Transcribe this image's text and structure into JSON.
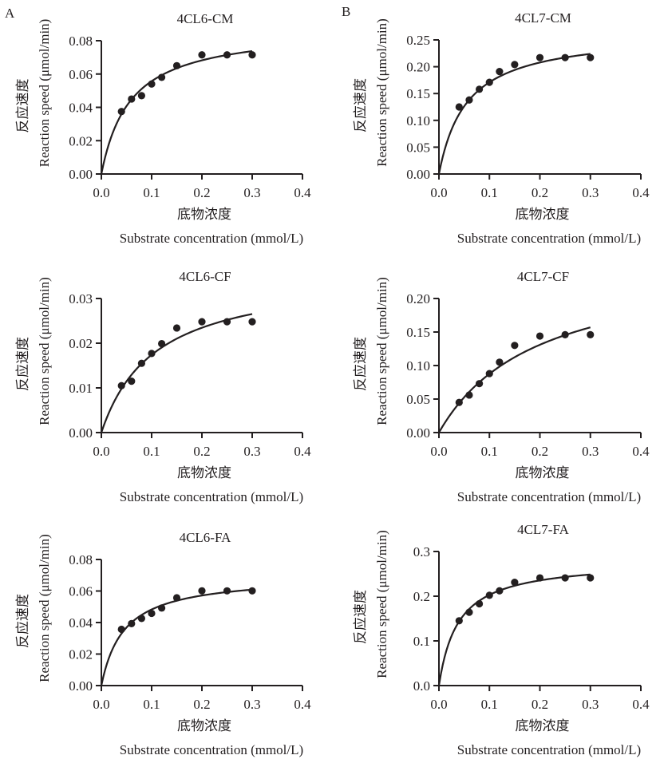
{
  "figure": {
    "panel_labels": [
      "A",
      "B"
    ],
    "colors": {
      "ink": "#231f20",
      "background": "#ffffff"
    }
  },
  "chart_data": [
    {
      "type": "scatter",
      "title": "4CL6-CM",
      "xlabel_cn": "底物浓度",
      "xlabel": "Substrate concentration (mmol/L)",
      "ylabel_cn": "反应速度",
      "ylabel": "Reaction speed (μmol/min)",
      "xlim": [
        0,
        0.4
      ],
      "ylim": [
        0,
        0.08
      ],
      "xticks": [
        "0.0",
        "0.1",
        "0.2",
        "0.3",
        "0.4"
      ],
      "yticks": [
        "0.00",
        "0.02",
        "0.04",
        "0.06",
        "0.08"
      ],
      "x": [
        0.04,
        0.06,
        0.08,
        0.1,
        0.12,
        0.15,
        0.2,
        0.25,
        0.3
      ],
      "y": [
        0.0375,
        0.045,
        0.047,
        0.054,
        0.058,
        0.065,
        0.0715,
        0.0715,
        0.0715
      ],
      "fit": {
        "model": "Michaelis-Menten",
        "Vmax": 0.088,
        "Km": 0.058,
        "x_range": [
          0,
          0.3
        ]
      },
      "grid": false,
      "legend": "none"
    },
    {
      "type": "scatter",
      "title": "4CL7-CM",
      "xlabel_cn": "底物浓度",
      "xlabel": "Substrate concentration (mmol/L)",
      "ylabel_cn": "反应速度",
      "ylabel": "Reaction speed (μmol/min)",
      "xlim": [
        0,
        0.4
      ],
      "ylim": [
        0,
        0.25
      ],
      "xticks": [
        "0.0",
        "0.1",
        "0.2",
        "0.3",
        "0.4"
      ],
      "yticks": [
        "0.00",
        "0.05",
        "0.10",
        "0.15",
        "0.20",
        "0.25"
      ],
      "x": [
        0.04,
        0.06,
        0.08,
        0.1,
        0.12,
        0.15,
        0.2,
        0.25,
        0.3
      ],
      "y": [
        0.125,
        0.138,
        0.158,
        0.171,
        0.191,
        0.204,
        0.217,
        0.217,
        0.217
      ],
      "fit": {
        "model": "Michaelis-Menten",
        "Vmax": 0.265,
        "Km": 0.055,
        "x_range": [
          0,
          0.3
        ]
      },
      "grid": false,
      "legend": "none"
    },
    {
      "type": "scatter",
      "title": "4CL6-CF",
      "xlabel_cn": "底物浓度",
      "xlabel": "Substrate concentration (mmol/L)",
      "ylabel_cn": "反应速度",
      "ylabel": "Reaction speed (μmol/min)",
      "xlim": [
        0,
        0.4
      ],
      "ylim": [
        0,
        0.03
      ],
      "xticks": [
        "0.0",
        "0.1",
        "0.2",
        "0.3",
        "0.4"
      ],
      "yticks": [
        "0.00",
        "0.01",
        "0.02",
        "0.03"
      ],
      "x": [
        0.04,
        0.06,
        0.08,
        0.1,
        0.12,
        0.15,
        0.2,
        0.25,
        0.3
      ],
      "y": [
        0.0105,
        0.0115,
        0.0155,
        0.0177,
        0.0199,
        0.0234,
        0.0248,
        0.0248,
        0.0248
      ],
      "fit": {
        "model": "Michaelis-Menten",
        "Vmax": 0.036,
        "Km": 0.107,
        "x_range": [
          0,
          0.3
        ]
      },
      "grid": false,
      "legend": "none"
    },
    {
      "type": "scatter",
      "title": "4CL7-CF",
      "xlabel_cn": "底物浓度",
      "xlabel": "Substrate concentration (mmol/L)",
      "ylabel_cn": "反应速度",
      "ylabel": "Reaction speed (μmol/min)",
      "xlim": [
        0,
        0.4
      ],
      "ylim": [
        0,
        0.2
      ],
      "xticks": [
        "0.0",
        "0.1",
        "0.2",
        "0.3",
        "0.4"
      ],
      "yticks": [
        "0.00",
        "0.05",
        "0.10",
        "0.15",
        "0.20"
      ],
      "x": [
        0.04,
        0.06,
        0.08,
        0.1,
        0.12,
        0.15,
        0.2,
        0.25,
        0.3
      ],
      "y": [
        0.045,
        0.056,
        0.073,
        0.088,
        0.105,
        0.13,
        0.144,
        0.146,
        0.146
      ],
      "fit": {
        "model": "Michaelis-Menten",
        "Vmax": 0.26,
        "Km": 0.197,
        "x_range": [
          0,
          0.3
        ]
      },
      "grid": false,
      "legend": "none"
    },
    {
      "type": "scatter",
      "title": "4CL6-FA",
      "xlabel_cn": "底物浓度",
      "xlabel": "Substrate concentration (mmol/L)",
      "ylabel_cn": "反应速度",
      "ylabel": "Reaction speed (μmol/min)",
      "xlim": [
        0,
        0.4
      ],
      "ylim": [
        0,
        0.08
      ],
      "xticks": [
        "0.0",
        "0.1",
        "0.2",
        "0.3",
        "0.4"
      ],
      "yticks": [
        "0.00",
        "0.02",
        "0.04",
        "0.06",
        "0.08"
      ],
      "x": [
        0.04,
        0.06,
        0.08,
        0.1,
        0.12,
        0.15,
        0.2,
        0.25,
        0.3
      ],
      "y": [
        0.0357,
        0.0393,
        0.0426,
        0.0458,
        0.0492,
        0.0557,
        0.0601,
        0.0601,
        0.0601
      ],
      "fit": {
        "model": "Michaelis-Menten",
        "Vmax": 0.07,
        "Km": 0.045,
        "x_range": [
          0,
          0.3
        ]
      },
      "grid": false,
      "legend": "none"
    },
    {
      "type": "scatter",
      "title": "4CL7-FA",
      "xlabel_cn": "底物浓度",
      "xlabel": "Substrate concentration (mmol/L)",
      "ylabel_cn": "反应速度",
      "ylabel": "Reaction speed (μmol/min)",
      "xlim": [
        0,
        0.4
      ],
      "ylim": [
        0,
        0.3
      ],
      "xticks": [
        "0.0",
        "0.1",
        "0.2",
        "0.3",
        "0.4"
      ],
      "yticks": [
        "0.0",
        "0.1",
        "0.2",
        "0.3"
      ],
      "x": [
        0.04,
        0.06,
        0.08,
        0.1,
        0.12,
        0.15,
        0.2,
        0.25,
        0.3
      ],
      "y": [
        0.145,
        0.164,
        0.183,
        0.202,
        0.212,
        0.231,
        0.241,
        0.241,
        0.241
      ],
      "fit": {
        "model": "Michaelis-Menten",
        "Vmax": 0.28,
        "Km": 0.038,
        "x_range": [
          0,
          0.3
        ]
      },
      "grid": false,
      "legend": "none"
    }
  ]
}
